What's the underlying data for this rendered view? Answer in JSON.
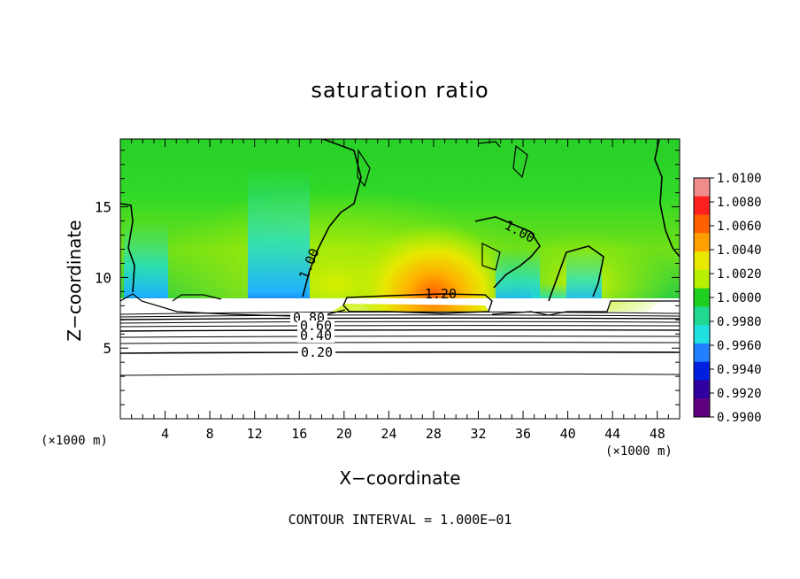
{
  "chart_data": {
    "type": "heatmap",
    "title": "saturation ratio",
    "xlabel": "X−coordinate",
    "ylabel": "Z−coordinate",
    "x_unit_left": "(×1000 m)",
    "x_unit_right": "(×1000 m)",
    "footer": "CONTOUR INTERVAL = 1.000E−01",
    "xlim": [
      0,
      50
    ],
    "ylim": [
      0,
      19.8
    ],
    "x_ticks": [
      "4",
      "8",
      "12",
      "16",
      "20",
      "24",
      "28",
      "32",
      "36",
      "40",
      "44",
      "48"
    ],
    "y_ticks": [
      "5",
      "10",
      "15"
    ],
    "colorbar": {
      "labels": [
        "1.0100",
        "1.0080",
        "1.0060",
        "1.0040",
        "1.0020",
        "1.0000",
        "0.9980",
        "0.9960",
        "0.9940",
        "0.9920",
        "0.9900"
      ],
      "colors": [
        "#f08c8c",
        "#ff2020",
        "#ff6000",
        "#ffa000",
        "#e8e800",
        "#b8f000",
        "#20d020",
        "#20d890",
        "#20e0e0",
        "#2080ff",
        "#0020e0",
        "#3000a0",
        "#600080"
      ]
    },
    "contour_labels": [
      "1.00",
      "1.00",
      "1.20",
      "0.80",
      "0.60",
      "0.40",
      "0.20"
    ],
    "cloud_base_km": 7.8,
    "lower_contour_levels": [
      0.1,
      0.2,
      0.3,
      0.4,
      0.5,
      0.6,
      0.7,
      0.8,
      0.9
    ]
  }
}
